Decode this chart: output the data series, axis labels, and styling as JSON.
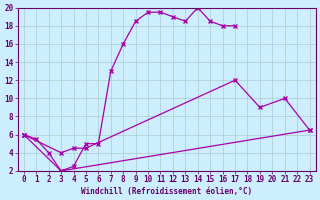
{
  "xlabel": "Windchill (Refroidissement éolien,°C)",
  "background_color": "#cceeff",
  "grid_color": "#aacccc",
  "line_color": "#aa00aa",
  "spine_color": "#660066",
  "xlim": [
    -0.5,
    23.5
  ],
  "ylim": [
    2,
    20
  ],
  "xticks": [
    0,
    1,
    2,
    3,
    4,
    5,
    6,
    7,
    8,
    9,
    10,
    11,
    12,
    13,
    14,
    15,
    16,
    17,
    18,
    19,
    20,
    21,
    22,
    23
  ],
  "yticks": [
    2,
    4,
    6,
    8,
    10,
    12,
    14,
    16,
    18,
    20
  ],
  "s1x": [
    0,
    1,
    2,
    3,
    4,
    5,
    6,
    7,
    8,
    9,
    10,
    11,
    12,
    13,
    14,
    15,
    16,
    17
  ],
  "s1y": [
    6.0,
    5.5,
    4.0,
    2.0,
    2.5,
    5.0,
    5.0,
    13.0,
    16.0,
    18.5,
    19.5,
    19.5,
    19.0,
    18.5,
    20.0,
    18.5,
    18.0,
    18.0
  ],
  "s2x": [
    0,
    3,
    4,
    5,
    17,
    19,
    21,
    23
  ],
  "s2y": [
    6.0,
    4.0,
    4.5,
    4.5,
    12.0,
    9.0,
    10.0,
    6.5
  ],
  "s3x": [
    0,
    3,
    23
  ],
  "s3y": [
    6.0,
    2.0,
    6.5
  ],
  "tick_fontsize": 5.5,
  "xlabel_fontsize": 5.5
}
